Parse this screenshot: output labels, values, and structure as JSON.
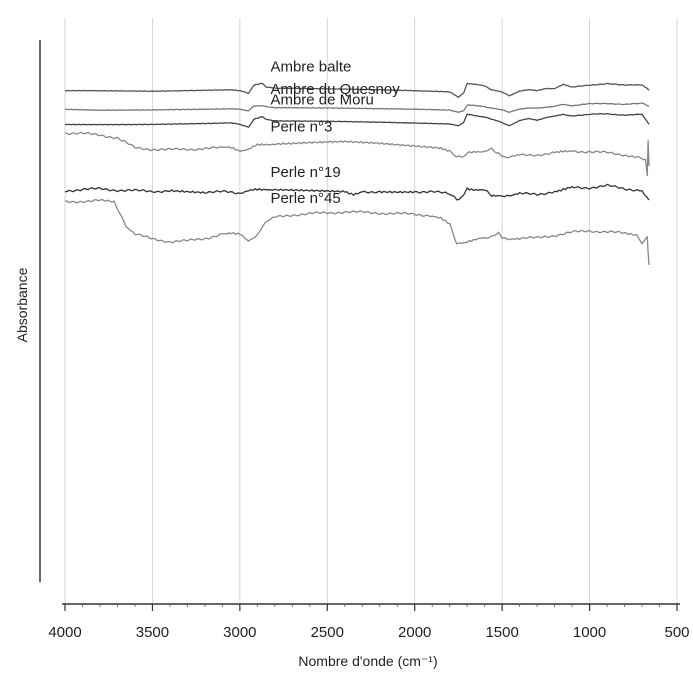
{
  "chart_data": {
    "type": "line",
    "xlabel": "Nombre d'onde (cm⁻¹)",
    "ylabel": "Absorbance",
    "xlim": [
      4000,
      500
    ],
    "x_reversed": true,
    "x_ticks": [
      4000,
      3500,
      3000,
      2500,
      2000,
      1500,
      1000,
      500
    ],
    "y_ticks_shown": false,
    "grid": "vertical",
    "x_unit_tick": 100,
    "series": [
      {
        "name": "Ambre balte",
        "color": "#555555",
        "points": [
          [
            4000,
            1.76
          ],
          [
            3800,
            1.76
          ],
          [
            3500,
            1.75
          ],
          [
            3200,
            1.77
          ],
          [
            3050,
            1.78
          ],
          [
            3000,
            1.76
          ],
          [
            2950,
            1.72
          ],
          [
            2920,
            1.85
          ],
          [
            2870,
            1.88
          ],
          [
            2850,
            1.82
          ],
          [
            2800,
            1.8
          ],
          [
            2500,
            1.79
          ],
          [
            2200,
            1.78
          ],
          [
            2000,
            1.76
          ],
          [
            1800,
            1.74
          ],
          [
            1750,
            1.66
          ],
          [
            1720,
            1.72
          ],
          [
            1700,
            1.88
          ],
          [
            1650,
            1.86
          ],
          [
            1600,
            1.84
          ],
          [
            1560,
            1.78
          ],
          [
            1500,
            1.74
          ],
          [
            1460,
            1.68
          ],
          [
            1400,
            1.76
          ],
          [
            1350,
            1.78
          ],
          [
            1300,
            1.76
          ],
          [
            1250,
            1.8
          ],
          [
            1200,
            1.8
          ],
          [
            1150,
            1.86
          ],
          [
            1100,
            1.82
          ],
          [
            1000,
            1.85
          ],
          [
            900,
            1.88
          ],
          [
            800,
            1.85
          ],
          [
            700,
            1.86
          ],
          [
            660,
            1.77
          ]
        ]
      },
      {
        "name": "Ambre du Quesnoy",
        "color": "#777777",
        "points": [
          [
            4000,
            1.46
          ],
          [
            3800,
            1.45
          ],
          [
            3500,
            1.45
          ],
          [
            3200,
            1.46
          ],
          [
            3050,
            1.47
          ],
          [
            3000,
            1.46
          ],
          [
            2950,
            1.44
          ],
          [
            2920,
            1.51
          ],
          [
            2870,
            1.52
          ],
          [
            2850,
            1.5
          ],
          [
            2800,
            1.49
          ],
          [
            2500,
            1.48
          ],
          [
            2200,
            1.47
          ],
          [
            2000,
            1.46
          ],
          [
            1800,
            1.45
          ],
          [
            1750,
            1.42
          ],
          [
            1720,
            1.44
          ],
          [
            1700,
            1.53
          ],
          [
            1650,
            1.52
          ],
          [
            1600,
            1.51
          ],
          [
            1560,
            1.48
          ],
          [
            1500,
            1.45
          ],
          [
            1460,
            1.42
          ],
          [
            1400,
            1.47
          ],
          [
            1350,
            1.48
          ],
          [
            1300,
            1.48
          ],
          [
            1250,
            1.5
          ],
          [
            1200,
            1.51
          ],
          [
            1150,
            1.54
          ],
          [
            1100,
            1.52
          ],
          [
            1000,
            1.55
          ],
          [
            900,
            1.56
          ],
          [
            800,
            1.54
          ],
          [
            700,
            1.56
          ],
          [
            660,
            1.51
          ]
        ]
      },
      {
        "name": "Ambre de Moru",
        "color": "#444444",
        "points": [
          [
            4000,
            1.22
          ],
          [
            3800,
            1.22
          ],
          [
            3500,
            1.22
          ],
          [
            3200,
            1.23
          ],
          [
            3050,
            1.24
          ],
          [
            3000,
            1.22
          ],
          [
            2950,
            1.18
          ],
          [
            2920,
            1.3
          ],
          [
            2870,
            1.35
          ],
          [
            2850,
            1.3
          ],
          [
            2800,
            1.28
          ],
          [
            2500,
            1.27
          ],
          [
            2200,
            1.25
          ],
          [
            2000,
            1.24
          ],
          [
            1800,
            1.23
          ],
          [
            1750,
            1.2
          ],
          [
            1720,
            1.25
          ],
          [
            1700,
            1.38
          ],
          [
            1650,
            1.36
          ],
          [
            1600,
            1.34
          ],
          [
            1560,
            1.3
          ],
          [
            1500,
            1.25
          ],
          [
            1460,
            1.2
          ],
          [
            1400,
            1.28
          ],
          [
            1350,
            1.31
          ],
          [
            1300,
            1.29
          ],
          [
            1250,
            1.33
          ],
          [
            1200,
            1.35
          ],
          [
            1150,
            1.38
          ],
          [
            1100,
            1.36
          ],
          [
            1000,
            1.38
          ],
          [
            900,
            1.39
          ],
          [
            800,
            1.37
          ],
          [
            700,
            1.38
          ],
          [
            660,
            1.22
          ]
        ]
      },
      {
        "name": "Perle n°3",
        "color": "#888888",
        "points": [
          [
            4000,
            1.08
          ],
          [
            3900,
            1.07
          ],
          [
            3800,
            1.05
          ],
          [
            3700,
            1.0
          ],
          [
            3600,
            0.84
          ],
          [
            3500,
            0.82
          ],
          [
            3400,
            0.81
          ],
          [
            3300,
            0.82
          ],
          [
            3200,
            0.83
          ],
          [
            3100,
            0.84
          ],
          [
            3050,
            0.84
          ],
          [
            3000,
            0.8
          ],
          [
            2950,
            0.82
          ],
          [
            2900,
            0.88
          ],
          [
            2850,
            0.9
          ],
          [
            2800,
            0.91
          ],
          [
            2600,
            0.92
          ],
          [
            2400,
            0.93
          ],
          [
            2200,
            0.91
          ],
          [
            2000,
            0.88
          ],
          [
            1850,
            0.84
          ],
          [
            1800,
            0.8
          ],
          [
            1760,
            0.68
          ],
          [
            1720,
            0.72
          ],
          [
            1700,
            0.76
          ],
          [
            1650,
            0.79
          ],
          [
            1600,
            0.78
          ],
          [
            1560,
            0.82
          ],
          [
            1520,
            0.76
          ],
          [
            1500,
            0.71
          ],
          [
            1460,
            0.69
          ],
          [
            1400,
            0.72
          ],
          [
            1300,
            0.73
          ],
          [
            1200,
            0.76
          ],
          [
            1150,
            0.8
          ],
          [
            1100,
            0.79
          ],
          [
            1000,
            0.78
          ],
          [
            900,
            0.76
          ],
          [
            800,
            0.73
          ],
          [
            720,
            0.7
          ],
          [
            680,
            0.65
          ],
          [
            670,
            0.4
          ],
          [
            665,
            0.95
          ],
          [
            660,
            0.55
          ]
        ]
      },
      {
        "name": "Perle n°19",
        "color": "#333333",
        "points": [
          [
            4000,
            0.15
          ],
          [
            3900,
            0.17
          ],
          [
            3800,
            0.18
          ],
          [
            3700,
            0.16
          ],
          [
            3600,
            0.15
          ],
          [
            3500,
            0.14
          ],
          [
            3400,
            0.15
          ],
          [
            3200,
            0.13
          ],
          [
            3100,
            0.13
          ],
          [
            3000,
            0.11
          ],
          [
            2950,
            0.14
          ],
          [
            2900,
            0.17
          ],
          [
            2850,
            0.18
          ],
          [
            2800,
            0.16
          ],
          [
            2600,
            0.14
          ],
          [
            2400,
            0.13
          ],
          [
            2350,
            0.1
          ],
          [
            2300,
            0.13
          ],
          [
            2200,
            0.14
          ],
          [
            2000,
            0.14
          ],
          [
            1900,
            0.13
          ],
          [
            1800,
            0.1
          ],
          [
            1760,
            0.0
          ],
          [
            1720,
            0.08
          ],
          [
            1700,
            0.19
          ],
          [
            1650,
            0.17
          ],
          [
            1600,
            0.15
          ],
          [
            1560,
            0.08
          ],
          [
            1500,
            0.08
          ],
          [
            1460,
            0.05
          ],
          [
            1400,
            0.1
          ],
          [
            1300,
            0.09
          ],
          [
            1200,
            0.14
          ],
          [
            1150,
            0.18
          ],
          [
            1100,
            0.2
          ],
          [
            1000,
            0.2
          ],
          [
            900,
            0.23
          ],
          [
            800,
            0.18
          ],
          [
            700,
            0.16
          ],
          [
            660,
            0.0
          ]
        ]
      },
      {
        "name": "Perle n°45",
        "color": "#888888",
        "points": [
          [
            4000,
            -0.03
          ],
          [
            3900,
            -0.02
          ],
          [
            3800,
            -0.01
          ],
          [
            3720,
            -0.04
          ],
          [
            3680,
            -0.25
          ],
          [
            3650,
            -0.45
          ],
          [
            3600,
            -0.55
          ],
          [
            3500,
            -0.63
          ],
          [
            3400,
            -0.67
          ],
          [
            3300,
            -0.66
          ],
          [
            3200,
            -0.62
          ],
          [
            3100,
            -0.55
          ],
          [
            3050,
            -0.52
          ],
          [
            3000,
            -0.55
          ],
          [
            2950,
            -0.68
          ],
          [
            2920,
            -0.62
          ],
          [
            2880,
            -0.5
          ],
          [
            2850,
            -0.35
          ],
          [
            2800,
            -0.28
          ],
          [
            2700,
            -0.24
          ],
          [
            2600,
            -0.22
          ],
          [
            2500,
            -0.21
          ],
          [
            2400,
            -0.19
          ],
          [
            2300,
            -0.2
          ],
          [
            2200,
            -0.21
          ],
          [
            2100,
            -0.22
          ],
          [
            2000,
            -0.23
          ],
          [
            1900,
            -0.25
          ],
          [
            1850,
            -0.28
          ],
          [
            1800,
            -0.4
          ],
          [
            1760,
            -0.7
          ],
          [
            1720,
            -0.68
          ],
          [
            1700,
            -0.66
          ],
          [
            1650,
            -0.64
          ],
          [
            1600,
            -0.62
          ],
          [
            1560,
            -0.58
          ],
          [
            1520,
            -0.54
          ],
          [
            1500,
            -0.62
          ],
          [
            1460,
            -0.64
          ],
          [
            1400,
            -0.62
          ],
          [
            1300,
            -0.61
          ],
          [
            1200,
            -0.57
          ],
          [
            1100,
            -0.52
          ],
          [
            1000,
            -0.5
          ],
          [
            900,
            -0.51
          ],
          [
            800,
            -0.54
          ],
          [
            730,
            -0.58
          ],
          [
            700,
            -0.7
          ],
          [
            670,
            -0.6
          ],
          [
            660,
            -1.05
          ]
        ]
      }
    ]
  }
}
